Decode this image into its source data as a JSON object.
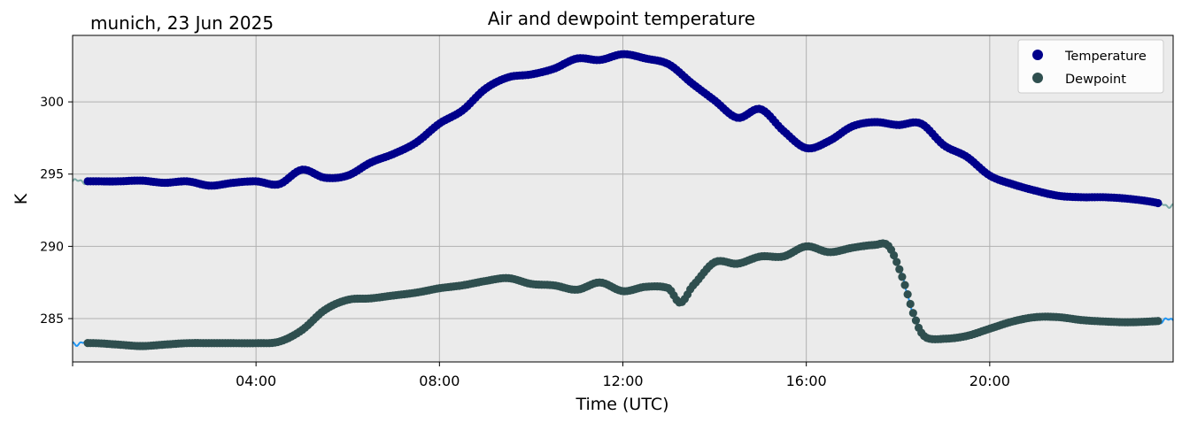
{
  "chart_data": {
    "type": "line",
    "title": "Air and dewpoint temperature",
    "subtitle": "munich, 23 Jun 2025",
    "xlabel": "Time (UTC)",
    "ylabel": "K",
    "xlim": [
      0,
      24
    ],
    "ylim": [
      282,
      304.6
    ],
    "x_ticks": [
      {
        "value": 4,
        "label": "04:00"
      },
      {
        "value": 8,
        "label": "08:00"
      },
      {
        "value": 12,
        "label": "12:00"
      },
      {
        "value": 16,
        "label": "16:00"
      },
      {
        "value": 20,
        "label": "20:00"
      }
    ],
    "y_ticks": [
      285,
      290,
      295,
      300
    ],
    "grid": true,
    "legend_position": "top-right",
    "background": "#ebebeb",
    "series": [
      {
        "name": "Temperature",
        "style": "markers",
        "color": "#00008b",
        "raw_color": "#7aaaa6",
        "raw_range": [
          0,
          24
        ],
        "range": [
          0.33,
          23.67
        ],
        "x": [
          0,
          0.5,
          1,
          1.5,
          2,
          2.5,
          3,
          3.5,
          4,
          4.5,
          5,
          5.5,
          6,
          6.5,
          7,
          7.5,
          8,
          8.5,
          9,
          9.5,
          10,
          10.5,
          11,
          11.5,
          12,
          12.5,
          13,
          13.5,
          14,
          14.5,
          15,
          15.5,
          16,
          16.5,
          17,
          17.5,
          18,
          18.5,
          19,
          19.5,
          20,
          20.5,
          21,
          21.5,
          22,
          22.5,
          23,
          23.5,
          24
        ],
        "y": [
          294.5,
          294.5,
          294.5,
          294.55,
          294.4,
          294.5,
          294.2,
          294.4,
          294.5,
          294.3,
          295.3,
          294.75,
          294.9,
          295.8,
          296.4,
          297.2,
          298.5,
          299.4,
          300.9,
          301.7,
          301.9,
          302.3,
          303.0,
          302.9,
          303.3,
          303.0,
          302.6,
          301.3,
          300.1,
          298.9,
          299.5,
          298.0,
          296.8,
          297.3,
          298.3,
          298.6,
          298.4,
          298.5,
          297.0,
          296.2,
          294.9,
          294.3,
          293.85,
          293.5,
          293.4,
          293.4,
          293.3,
          293.1,
          292.8
        ]
      },
      {
        "name": "Dewpoint",
        "style": "markers",
        "color": "#2f4f4f",
        "raw_color": "#2196f3",
        "raw_range": [
          0,
          24
        ],
        "range": [
          0.33,
          23.67
        ],
        "x": [
          0,
          0.5,
          1,
          1.5,
          2,
          2.5,
          3,
          3.5,
          4,
          4.5,
          5,
          5.5,
          6,
          6.5,
          7,
          7.5,
          8,
          8.5,
          9,
          9.5,
          10,
          10.5,
          11,
          11.5,
          12,
          12.5,
          13,
          13.25,
          13.5,
          14,
          14.5,
          15,
          15.5,
          16,
          16.5,
          17,
          17.5,
          17.8,
          18.1,
          18.4,
          18.6,
          19,
          19.5,
          20,
          20.5,
          21,
          21.5,
          22,
          22.5,
          23,
          23.5,
          24
        ],
        "y": [
          283.3,
          283.3,
          283.2,
          283.1,
          283.2,
          283.3,
          283.3,
          283.3,
          283.3,
          283.4,
          284.2,
          285.6,
          286.3,
          286.4,
          286.6,
          286.8,
          287.1,
          287.3,
          287.6,
          287.8,
          287.4,
          287.3,
          287.0,
          287.5,
          286.9,
          287.2,
          287.1,
          286.1,
          287.2,
          288.9,
          288.8,
          289.3,
          289.3,
          290.0,
          289.6,
          289.9,
          290.1,
          290.0,
          287.8,
          284.8,
          283.7,
          283.6,
          283.8,
          284.3,
          284.8,
          285.1,
          285.1,
          284.9,
          284.8,
          284.75,
          284.8,
          284.9
        ]
      }
    ]
  }
}
